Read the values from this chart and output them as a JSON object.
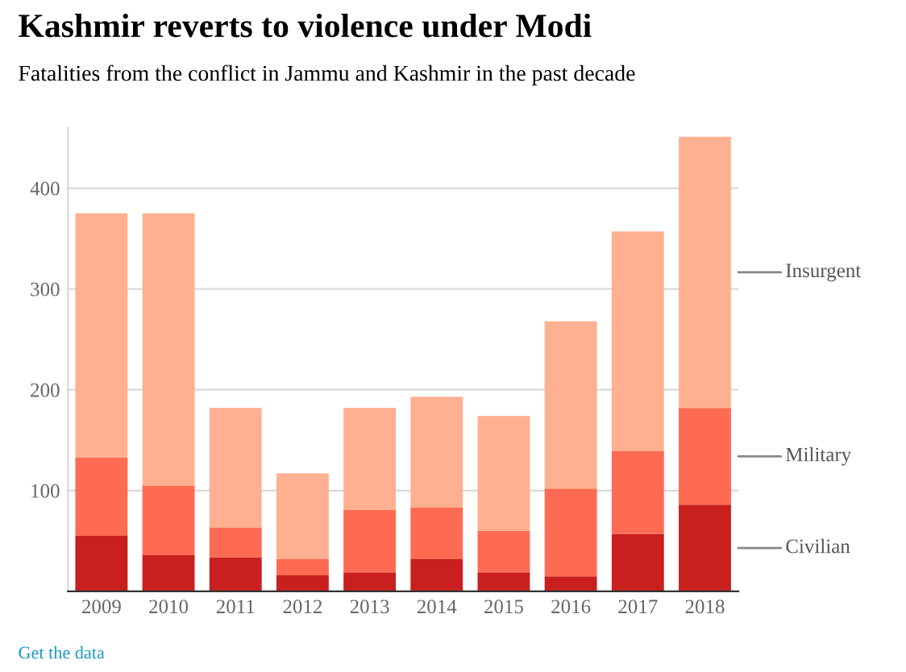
{
  "chart_data": {
    "type": "bar",
    "title": "Kashmir reverts to violence under Modi",
    "subtitle": "Fatalities from the conflict in Jammu and Kashmir in the past decade",
    "categories": [
      "2009",
      "2010",
      "2011",
      "2012",
      "2013",
      "2014",
      "2015",
      "2016",
      "2017",
      "2018"
    ],
    "stacked": true,
    "series": [
      {
        "name": "Civilian",
        "color": "#c91f1f",
        "values": [
          55,
          36,
          34,
          16,
          19,
          32,
          19,
          15,
          57,
          86
        ]
      },
      {
        "name": "Military",
        "color": "#ff6b52",
        "values": [
          78,
          69,
          29,
          16,
          62,
          51,
          41,
          87,
          82,
          96
        ]
      },
      {
        "name": "Insurgent",
        "color": "#ffb090",
        "values": [
          242,
          270,
          119,
          85,
          101,
          110,
          114,
          166,
          218,
          269
        ]
      }
    ],
    "ylim": [
      0,
      460
    ],
    "yticks": [
      100,
      200,
      300,
      400
    ],
    "grid": "y",
    "legend": "right",
    "annotations": [
      "Get the data"
    ]
  }
}
